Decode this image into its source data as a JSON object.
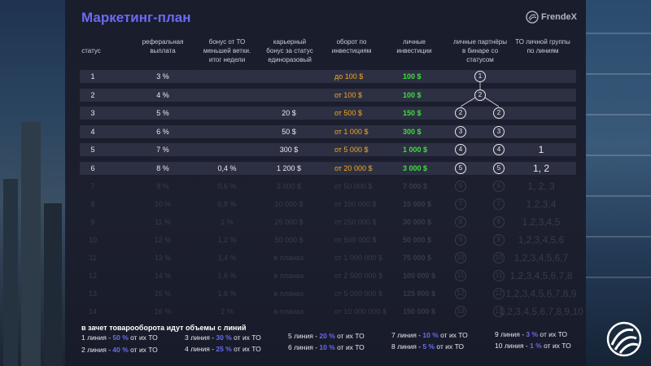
{
  "title": "Маркетинг-план",
  "logo": {
    "name": "FrendeX"
  },
  "headers": [
    "статус",
    "реферальная\nвыплата",
    "бонус от ТО\nменьшей ветки.\nитог недели",
    "карьерный\nбонус за статус\nединоразовый",
    "оборот по\nинвестициям",
    "личные\nинвестиции",
    "личные партнёры\nв бинаре со\nстатусом",
    "ТО личной группы\nпо линиям"
  ],
  "rows": [
    {
      "status": "1",
      "ref": "3 %",
      "bonus": "",
      "career": "",
      "turnover": "до 100 $",
      "personal": "100 $",
      "partners": [
        "",
        "1"
      ],
      "lines": ""
    },
    {
      "status": "2",
      "ref": "4 %",
      "bonus": "",
      "career": "",
      "turnover": "от 100 $",
      "personal": "100 $",
      "partners": [
        "",
        "2"
      ],
      "lines": ""
    },
    {
      "status": "3",
      "ref": "5 %",
      "bonus": "",
      "career": "20 $",
      "turnover": "от 500 $",
      "personal": "150 $",
      "partners": [
        "2",
        "2"
      ],
      "lines": ""
    },
    {
      "status": "4",
      "ref": "6 %",
      "bonus": "",
      "career": "50 $",
      "turnover": "от 1 000 $",
      "personal": "300 $",
      "partners": [
        "3",
        "3"
      ],
      "lines": ""
    },
    {
      "status": "5",
      "ref": "7 %",
      "bonus": "",
      "career": "300 $",
      "turnover": "от 5 000 $",
      "personal": "1 000 $",
      "partners": [
        "4",
        "4"
      ],
      "lines": "1"
    },
    {
      "status": "6",
      "ref": "8 %",
      "bonus": "0,4 %",
      "career": "1 200 $",
      "turnover": "от 20 000 $",
      "personal": "3 000 $",
      "partners": [
        "5",
        "5"
      ],
      "lines": "1, 2"
    }
  ],
  "faded_rows": [
    {
      "status": "7",
      "ref": "9 %",
      "bonus": "0,6 %",
      "career": "3 000 $",
      "turnover": "от 50 000 $",
      "personal": "7 000 $",
      "partners": [
        "6",
        "6"
      ],
      "lines": "1, 2, 3"
    },
    {
      "status": "8",
      "ref": "10 %",
      "bonus": "0,8 %",
      "career": "10 000 $",
      "turnover": "от 100 000 $",
      "personal": "15 000 $",
      "partners": [
        "7",
        "7"
      ],
      "lines": "1,2,3,4"
    },
    {
      "status": "9",
      "ref": "11 %",
      "bonus": "1 %",
      "career": "25 000 $",
      "turnover": "от 250 000 $",
      "personal": "30 000 $",
      "partners": [
        "8",
        "8"
      ],
      "lines": "1,2,3,4,5"
    },
    {
      "status": "10",
      "ref": "12 %",
      "bonus": "1,2 %",
      "career": "50 000 $",
      "turnover": "от 500 000 $",
      "personal": "50 000 $",
      "partners": [
        "9",
        "9"
      ],
      "lines": "1,2,3,4,5,6"
    },
    {
      "status": "11",
      "ref": "13 %",
      "bonus": "1,4 %",
      "career": "в планах",
      "turnover": "от 1 000 000 $",
      "personal": "75 000 $",
      "partners": [
        "10",
        "10"
      ],
      "lines": "1,2,3,4,5,6,7"
    },
    {
      "status": "12",
      "ref": "14 %",
      "bonus": "1,6 %",
      "career": "в планах",
      "turnover": "от 2 500 000 $",
      "personal": "100 000 $",
      "partners": [
        "11",
        "11"
      ],
      "lines": "1,2,3,4,5,6,7,8"
    },
    {
      "status": "13",
      "ref": "15 %",
      "bonus": "1,8 %",
      "career": "в планах",
      "turnover": "от 5 000 000 $",
      "personal": "125 000 $",
      "partners": [
        "12",
        "12"
      ],
      "lines": "1,2,3,4,5,6,7,8,9"
    },
    {
      "status": "14",
      "ref": "16 %",
      "bonus": "2 %",
      "career": "в планах",
      "turnover": "от 10 000 000 $",
      "personal": "150 000 $",
      "partners": [
        "13",
        "13"
      ],
      "lines": "1,2,3,4,5,6,7,8,9,10"
    }
  ],
  "footer": {
    "title": "в зачет товарооборота идут объемы с линий",
    "items": [
      {
        "pre": "1 линия -",
        "pct": "50 %",
        "post": "от их ТО"
      },
      {
        "pre": "2 линия -",
        "pct": "40 %",
        "post": "от их ТО"
      },
      {
        "pre": "3 линия -",
        "pct": "30 %",
        "post": "от их ТО"
      },
      {
        "pre": "4 линия -",
        "pct": "25 %",
        "post": "от их ТО"
      },
      {
        "pre": "5 линия -",
        "pct": "20 %",
        "post": "от их ТО"
      },
      {
        "pre": "6 линия -",
        "pct": "10 %",
        "post": "от их ТО"
      },
      {
        "pre": "7 линия -",
        "pct": "10 %",
        "post": "от их ТО"
      },
      {
        "pre": "8 линия -",
        "pct": "5 %",
        "post": "от их ТО"
      },
      {
        "pre": "9 линия -",
        "pct": "3 %",
        "post": "от их ТО"
      },
      {
        "pre": "10 линия -",
        "pct": "1 %",
        "post": "от их ТО"
      }
    ]
  },
  "colors": {
    "accent": "#6b6bf0",
    "orange": "#f5a623",
    "green": "#3fdc3f",
    "row": "#2d3042"
  },
  "icons": [
    "frendex-logo-icon",
    "brand-mark-icon"
  ]
}
